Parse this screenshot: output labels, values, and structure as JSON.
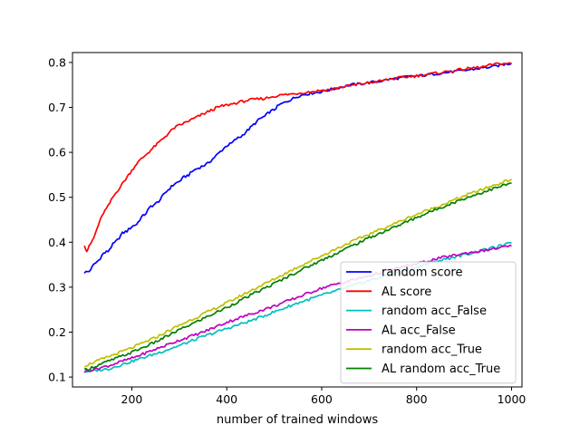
{
  "chart_data": {
    "type": "line",
    "title": "",
    "xlabel": "number of trained windows",
    "ylabel": "",
    "xlim": [
      75,
      1022
    ],
    "ylim": [
      0.078,
      0.822
    ],
    "xticks": [
      200,
      400,
      600,
      800,
      1000
    ],
    "yticks": [
      0.1,
      0.2,
      0.3,
      0.4,
      0.5,
      0.6,
      0.7,
      0.8
    ],
    "ytick_labels": [
      "0.1",
      "0.2",
      "0.3",
      "0.4",
      "0.5",
      "0.6",
      "0.7",
      "0.8"
    ],
    "grid": false,
    "legend_position": "lower-right",
    "series": [
      {
        "name": "random score",
        "color": "#0000ff",
        "x": [
          100,
          110,
          120,
          130,
          140,
          150,
          160,
          170,
          180,
          190,
          200,
          210,
          220,
          230,
          240,
          250,
          260,
          270,
          280,
          290,
          300,
          310,
          320,
          330,
          340,
          350,
          360,
          370,
          380,
          390,
          400,
          410,
          420,
          430,
          440,
          450,
          460,
          470,
          480,
          490,
          500,
          510,
          520,
          530,
          540,
          550,
          560,
          570,
          580,
          590,
          600,
          620,
          640,
          660,
          680,
          700,
          720,
          740,
          760,
          780,
          800,
          820,
          840,
          860,
          880,
          900,
          920,
          940,
          960,
          980,
          1000
        ],
        "values": [
          0.333,
          0.335,
          0.35,
          0.36,
          0.375,
          0.38,
          0.395,
          0.405,
          0.42,
          0.425,
          0.435,
          0.44,
          0.455,
          0.465,
          0.48,
          0.485,
          0.495,
          0.51,
          0.52,
          0.53,
          0.535,
          0.545,
          0.55,
          0.56,
          0.565,
          0.57,
          0.575,
          0.585,
          0.595,
          0.605,
          0.615,
          0.62,
          0.63,
          0.635,
          0.645,
          0.655,
          0.665,
          0.675,
          0.68,
          0.69,
          0.695,
          0.705,
          0.71,
          0.715,
          0.72,
          0.725,
          0.728,
          0.73,
          0.732,
          0.733,
          0.735,
          0.74,
          0.745,
          0.75,
          0.752,
          0.755,
          0.758,
          0.762,
          0.765,
          0.768,
          0.77,
          0.772,
          0.775,
          0.777,
          0.78,
          0.782,
          0.785,
          0.788,
          0.79,
          0.795,
          0.798
        ]
      },
      {
        "name": "AL score",
        "color": "#ff0000",
        "x": [
          100,
          105,
          110,
          120,
          130,
          140,
          150,
          160,
          170,
          180,
          190,
          200,
          210,
          220,
          230,
          240,
          250,
          260,
          270,
          280,
          290,
          300,
          310,
          320,
          330,
          340,
          350,
          360,
          370,
          380,
          390,
          400,
          420,
          440,
          460,
          480,
          500,
          520,
          540,
          560,
          580,
          600,
          620,
          640,
          660,
          680,
          700,
          720,
          740,
          760,
          780,
          800,
          820,
          840,
          860,
          880,
          900,
          920,
          940,
          960,
          980,
          1000
        ],
        "values": [
          0.395,
          0.38,
          0.39,
          0.41,
          0.44,
          0.465,
          0.48,
          0.5,
          0.515,
          0.53,
          0.545,
          0.56,
          0.575,
          0.585,
          0.595,
          0.605,
          0.615,
          0.625,
          0.635,
          0.645,
          0.655,
          0.66,
          0.665,
          0.67,
          0.675,
          0.68,
          0.685,
          0.69,
          0.695,
          0.7,
          0.703,
          0.705,
          0.71,
          0.715,
          0.718,
          0.72,
          0.725,
          0.728,
          0.73,
          0.733,
          0.735,
          0.738,
          0.74,
          0.745,
          0.748,
          0.752,
          0.755,
          0.758,
          0.762,
          0.765,
          0.768,
          0.77,
          0.773,
          0.776,
          0.779,
          0.782,
          0.785,
          0.788,
          0.79,
          0.795,
          0.798,
          0.797
        ]
      },
      {
        "name": "random acc_False",
        "color": "#00bfbf",
        "x": [
          100,
          150,
          200,
          250,
          300,
          350,
          400,
          450,
          500,
          550,
          600,
          650,
          700,
          750,
          800,
          850,
          900,
          950,
          1000
        ],
        "values": [
          0.112,
          0.118,
          0.135,
          0.152,
          0.17,
          0.19,
          0.208,
          0.225,
          0.245,
          0.265,
          0.282,
          0.298,
          0.315,
          0.33,
          0.345,
          0.36,
          0.372,
          0.385,
          0.398
        ]
      },
      {
        "name": "AL acc_False",
        "color": "#bf00bf",
        "x": [
          100,
          150,
          200,
          250,
          300,
          350,
          400,
          450,
          500,
          550,
          600,
          650,
          700,
          750,
          800,
          850,
          900,
          950,
          1000
        ],
        "values": [
          0.112,
          0.125,
          0.142,
          0.162,
          0.182,
          0.2,
          0.222,
          0.24,
          0.258,
          0.278,
          0.298,
          0.312,
          0.325,
          0.34,
          0.352,
          0.365,
          0.375,
          0.383,
          0.392
        ]
      },
      {
        "name": "random acc_True",
        "color": "#bfbf00",
        "x": [
          100,
          150,
          200,
          250,
          300,
          350,
          400,
          450,
          500,
          550,
          600,
          650,
          700,
          750,
          800,
          850,
          900,
          950,
          1000
        ],
        "values": [
          0.125,
          0.145,
          0.165,
          0.188,
          0.215,
          0.24,
          0.265,
          0.292,
          0.318,
          0.345,
          0.37,
          0.395,
          0.418,
          0.44,
          0.462,
          0.482,
          0.503,
          0.522,
          0.54
        ]
      },
      {
        "name": "AL random acc_True",
        "color": "#008000",
        "x": [
          100,
          150,
          200,
          250,
          300,
          350,
          400,
          450,
          500,
          550,
          600,
          650,
          700,
          750,
          800,
          850,
          900,
          950,
          1000
        ],
        "values": [
          0.115,
          0.135,
          0.155,
          0.178,
          0.205,
          0.23,
          0.255,
          0.282,
          0.308,
          0.335,
          0.36,
          0.385,
          0.41,
          0.432,
          0.455,
          0.477,
          0.497,
          0.515,
          0.532
        ]
      }
    ]
  }
}
